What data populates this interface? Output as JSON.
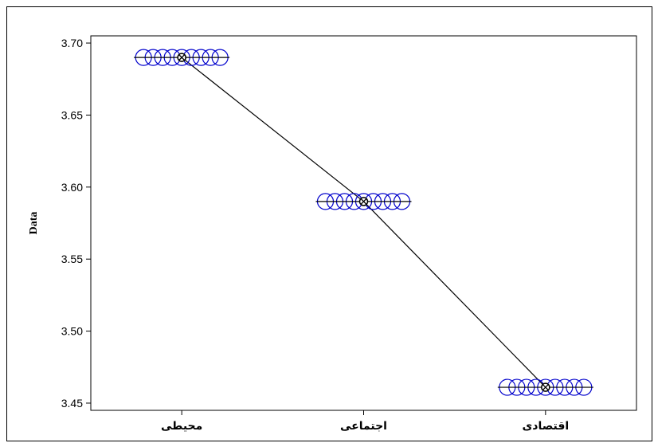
{
  "chart_data": {
    "type": "scatter",
    "title": "",
    "xlabel": "",
    "ylabel": "Data",
    "categories": [
      "محیطی",
      "اجتماعی",
      "اقتصادی"
    ],
    "ylim": [
      3.445,
      3.705
    ],
    "yticks": [
      3.45,
      3.5,
      3.55,
      3.6,
      3.65,
      3.7
    ],
    "ytick_labels": [
      "3.45",
      "3.50",
      "3.55",
      "3.60",
      "3.65",
      "3.70"
    ],
    "means": [
      3.69,
      3.59,
      3.461
    ],
    "points_per_category": 9,
    "point_offsets": [
      -4,
      -3,
      -2,
      -1,
      0,
      1,
      2,
      3,
      4
    ],
    "grid": false,
    "colors": {
      "points": "#0000cc",
      "mean_line": "#000000",
      "mean_marker": "#000000"
    }
  }
}
